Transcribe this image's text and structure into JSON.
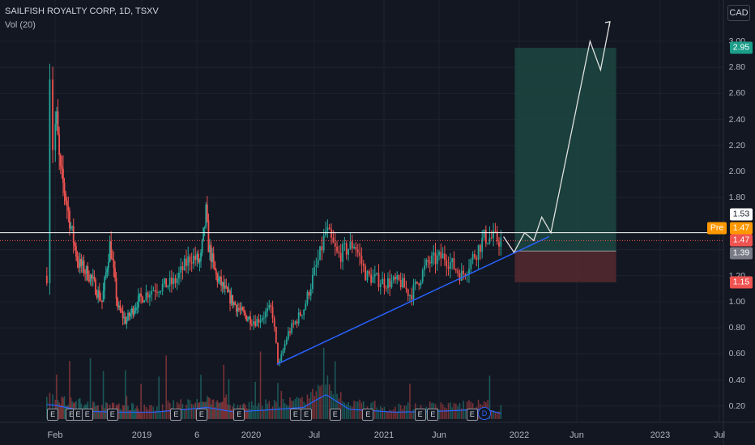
{
  "header": {
    "symbol": "SAILFISH ROYALTY CORP, 1D, TSXV",
    "indicator": "Vol (20)"
  },
  "currency": "CAD",
  "colors": {
    "background": "#131722",
    "up": "#26a69a",
    "down": "#ef5350",
    "trendline": "#2962ff",
    "target_zone": "#1d4d45",
    "stop_zone": "#5a2a2f",
    "projection": "#e0e0e0",
    "horizontal_line": "#ffffff"
  },
  "y_axis": {
    "ticks": [
      "3.00",
      "2.80",
      "2.60",
      "2.40",
      "2.20",
      "2.00",
      "1.80",
      "1.20",
      "1.00",
      "0.80",
      "0.60",
      "0.40",
      "0.20"
    ]
  },
  "x_axis": {
    "ticks": [
      "Feb",
      "2019",
      "6",
      "2020",
      "Jul",
      "2021",
      "Jun",
      "2022",
      "Jun",
      "2023",
      "Jul"
    ]
  },
  "price_labels": {
    "target": "2.95",
    "last": "1.53",
    "pre_label": "Pre",
    "pre": "1.47",
    "close": "1.47",
    "entry": "1.39",
    "stop": "1.15"
  },
  "events": {
    "earnings_label": "E",
    "dividend_label": "D"
  },
  "chart_data": {
    "type": "candlestick",
    "title": "SAILFISH ROYALTY CORP, 1D, TSXV",
    "ylim": [
      0.1,
      3.1
    ],
    "xlim": [
      "2018-01-10",
      "2023-07-15"
    ],
    "close_path": [
      {
        "x": "2018-01-18",
        "y": 1.2
      },
      {
        "x": "2018-01-22",
        "y": 2.9
      },
      {
        "x": "2018-01-28",
        "y": 2.2
      },
      {
        "x": "2018-02-05",
        "y": 2.45
      },
      {
        "x": "2018-02-20",
        "y": 2.0
      },
      {
        "x": "2018-03-10",
        "y": 1.85
      },
      {
        "x": "2018-04-05",
        "y": 1.55
      },
      {
        "x": "2018-05-01",
        "y": 1.3
      },
      {
        "x": "2018-06-15",
        "y": 1.2
      },
      {
        "x": "2018-08-01",
        "y": 1.0
      },
      {
        "x": "2018-09-01",
        "y": 1.45
      },
      {
        "x": "2018-10-01",
        "y": 0.95
      },
      {
        "x": "2018-11-01",
        "y": 0.85
      },
      {
        "x": "2018-12-15",
        "y": 1.0
      },
      {
        "x": "2019-02-01",
        "y": 1.1
      },
      {
        "x": "2019-04-01",
        "y": 1.15
      },
      {
        "x": "2019-05-15",
        "y": 1.35
      },
      {
        "x": "2019-06-15",
        "y": 1.3
      },
      {
        "x": "2019-07-08",
        "y": 1.7
      },
      {
        "x": "2019-07-15",
        "y": 1.45
      },
      {
        "x": "2019-08-15",
        "y": 1.2
      },
      {
        "x": "2019-10-01",
        "y": 1.05
      },
      {
        "x": "2019-12-01",
        "y": 0.9
      },
      {
        "x": "2020-01-15",
        "y": 0.85
      },
      {
        "x": "2020-03-01",
        "y": 0.95
      },
      {
        "x": "2020-03-20",
        "y": 0.5
      },
      {
        "x": "2020-04-15",
        "y": 0.75
      },
      {
        "x": "2020-06-01",
        "y": 0.95
      },
      {
        "x": "2020-07-15",
        "y": 1.35
      },
      {
        "x": "2020-08-01",
        "y": 1.55
      },
      {
        "x": "2020-09-01",
        "y": 1.35
      },
      {
        "x": "2020-10-15",
        "y": 1.45
      },
      {
        "x": "2020-11-15",
        "y": 1.2
      },
      {
        "x": "2021-01-01",
        "y": 1.15
      },
      {
        "x": "2021-02-15",
        "y": 1.15
      },
      {
        "x": "2021-03-15",
        "y": 1.05
      },
      {
        "x": "2021-05-01",
        "y": 1.3
      },
      {
        "x": "2021-06-15",
        "y": 1.35
      },
      {
        "x": "2021-08-01",
        "y": 1.2
      },
      {
        "x": "2021-09-01",
        "y": 1.35
      },
      {
        "x": "2021-10-01",
        "y": 1.5
      },
      {
        "x": "2021-11-15",
        "y": 1.47
      }
    ],
    "volume_profile": [
      {
        "x": "2018-02-01",
        "y": 0.22
      },
      {
        "x": "2018-06-01",
        "y": 0.16
      },
      {
        "x": "2018-10-01",
        "y": 0.15
      },
      {
        "x": "2019-02-01",
        "y": 0.15
      },
      {
        "x": "2019-07-08",
        "y": 0.2
      },
      {
        "x": "2019-11-01",
        "y": 0.15
      },
      {
        "x": "2020-03-20",
        "y": 0.18
      },
      {
        "x": "2020-06-01",
        "y": 0.2
      },
      {
        "x": "2020-08-01",
        "y": 0.33
      },
      {
        "x": "2020-10-01",
        "y": 0.18
      },
      {
        "x": "2021-02-01",
        "y": 0.15
      },
      {
        "x": "2021-06-01",
        "y": 0.16
      },
      {
        "x": "2021-10-01",
        "y": 0.18
      },
      {
        "x": "2021-12-01",
        "y": 0.12
      }
    ],
    "trendline": [
      {
        "x": "2020-03-15",
        "y": 0.52
      },
      {
        "x": "2022-03-20",
        "y": 1.5
      }
    ],
    "horizontal_line": {
      "y": 1.53
    },
    "position": {
      "start": "2021-12-20",
      "end": "2022-09-10",
      "entry": 1.39,
      "target": 2.95,
      "stop": 1.15
    },
    "projection": [
      {
        "x": "2021-11-20",
        "y": 1.5
      },
      {
        "x": "2021-12-18",
        "y": 1.38
      },
      {
        "x": "2022-01-15",
        "y": 1.53
      },
      {
        "x": "2022-02-08",
        "y": 1.47
      },
      {
        "x": "2022-03-01",
        "y": 1.65
      },
      {
        "x": "2022-03-25",
        "y": 1.53
      },
      {
        "x": "2022-07-05",
        "y": 3.0
      },
      {
        "x": "2022-08-01",
        "y": 2.78
      },
      {
        "x": "2022-08-25",
        "y": 3.15
      }
    ],
    "earnings_dates": [
      "2018-01-28",
      "2018-04-05",
      "2018-05-01",
      "2018-06-05",
      "2018-09-10",
      "2019-04-05",
      "2019-06-20",
      "2019-11-15",
      "2020-05-08",
      "2020-06-08",
      "2020-08-25",
      "2020-11-20",
      "2021-04-10",
      "2021-05-15",
      "2021-08-28"
    ],
    "dividend_dates": [
      "2021-09-30"
    ]
  }
}
